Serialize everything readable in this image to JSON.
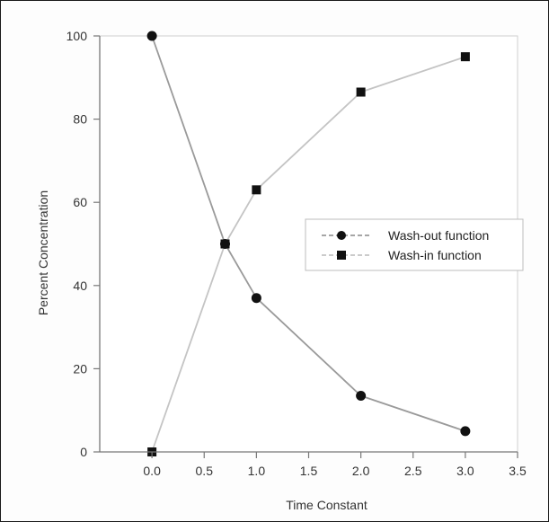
{
  "chart_data": {
    "type": "line",
    "title": "",
    "xlabel": "Time Constant",
    "ylabel": "Percent Concentration",
    "xlim": [
      -0.5,
      3.5
    ],
    "ylim": [
      0,
      100
    ],
    "x_ticks": [
      0.0,
      0.5,
      1.0,
      1.5,
      2.0,
      2.5,
      3.0,
      3.5
    ],
    "x_tick_labels": [
      "0.0",
      "0.5",
      "1.0",
      "1.5",
      "2.0",
      "2.5",
      "3.0",
      "3.5"
    ],
    "y_ticks": [
      0,
      20,
      40,
      60,
      80,
      100
    ],
    "y_tick_labels": [
      "0",
      "20",
      "40",
      "60",
      "80",
      "100"
    ],
    "grid": false,
    "legend_position": "right-middle",
    "series": [
      {
        "name": "Wash-out function",
        "marker": "circle",
        "color": "#111111",
        "line_color": "#9a9a9a",
        "x": [
          0.0,
          0.7,
          1.0,
          2.0,
          3.0
        ],
        "y": [
          100,
          50,
          37,
          13.5,
          5
        ]
      },
      {
        "name": "Wash-in function",
        "marker": "square",
        "color": "#111111",
        "line_color": "#c4c4c4",
        "x": [
          0.0,
          0.7,
          1.0,
          2.0,
          3.0
        ],
        "y": [
          0,
          50,
          63,
          86.5,
          95
        ]
      }
    ]
  }
}
